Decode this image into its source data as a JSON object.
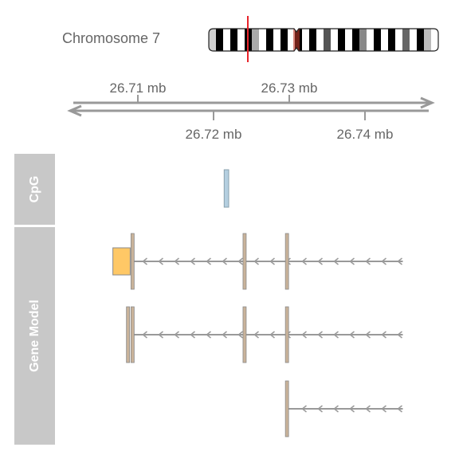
{
  "chromosome": {
    "label": "Chromosome 7",
    "highlight_color": "#e8232a",
    "bands": [
      "#cfcfcf",
      "#000000",
      "#ffffff",
      "#000000",
      "#ffffff",
      "#000000",
      "#aaaaaa",
      "#ffffff",
      "#000000",
      "#ffffff",
      "#000000",
      "#ffffff",
      "#000000",
      "#ffffff",
      "#000000",
      "#ffffff",
      "#555555",
      "#ffffff",
      "#000000",
      "#ffffff",
      "#000000",
      "#888888",
      "#ffffff",
      "#000000",
      "#ffffff",
      "#000000",
      "#ffffff",
      "#666666",
      "#ffffff",
      "#000000",
      "#bbbbbb",
      "#ffffff"
    ]
  },
  "axis": {
    "unit": "mb",
    "range": [
      26.7,
      26.745
    ],
    "ticks_top": [
      {
        "value": 26.71,
        "label": "26.71 mb"
      },
      {
        "value": 26.73,
        "label": "26.73 mb"
      }
    ],
    "ticks_bottom": [
      {
        "value": 26.72,
        "label": "26.72 mb"
      },
      {
        "value": 26.74,
        "label": "26.74 mb"
      }
    ],
    "color": "#999999"
  },
  "tracks": [
    {
      "name": "cpg-track",
      "label": "CpG"
    },
    {
      "name": "gene-model-track",
      "label": "Gene Model"
    }
  ],
  "cpg_islands": [
    {
      "start": 26.7214,
      "end": 26.722,
      "color": "#b4cfe0"
    }
  ],
  "transcripts": [
    {
      "start": 26.7093,
      "end": 26.745,
      "strand": "-",
      "exons": [
        26.7093,
        26.7241,
        26.7297
      ],
      "utr": {
        "start": 26.7067,
        "end": 26.7093,
        "color": "#ffc866"
      }
    },
    {
      "start": 26.7093,
      "end": 26.745,
      "strand": "-",
      "exons": [
        26.7087,
        26.7093,
        26.7241,
        26.7297
      ]
    },
    {
      "start": 26.7297,
      "end": 26.745,
      "strand": "-",
      "exons": [
        26.7297
      ]
    }
  ],
  "colors": {
    "exon": "#c9b39a",
    "exon_border": "#8a8a8a",
    "intron": "#999999",
    "label_panel": "#c8c8c8"
  }
}
